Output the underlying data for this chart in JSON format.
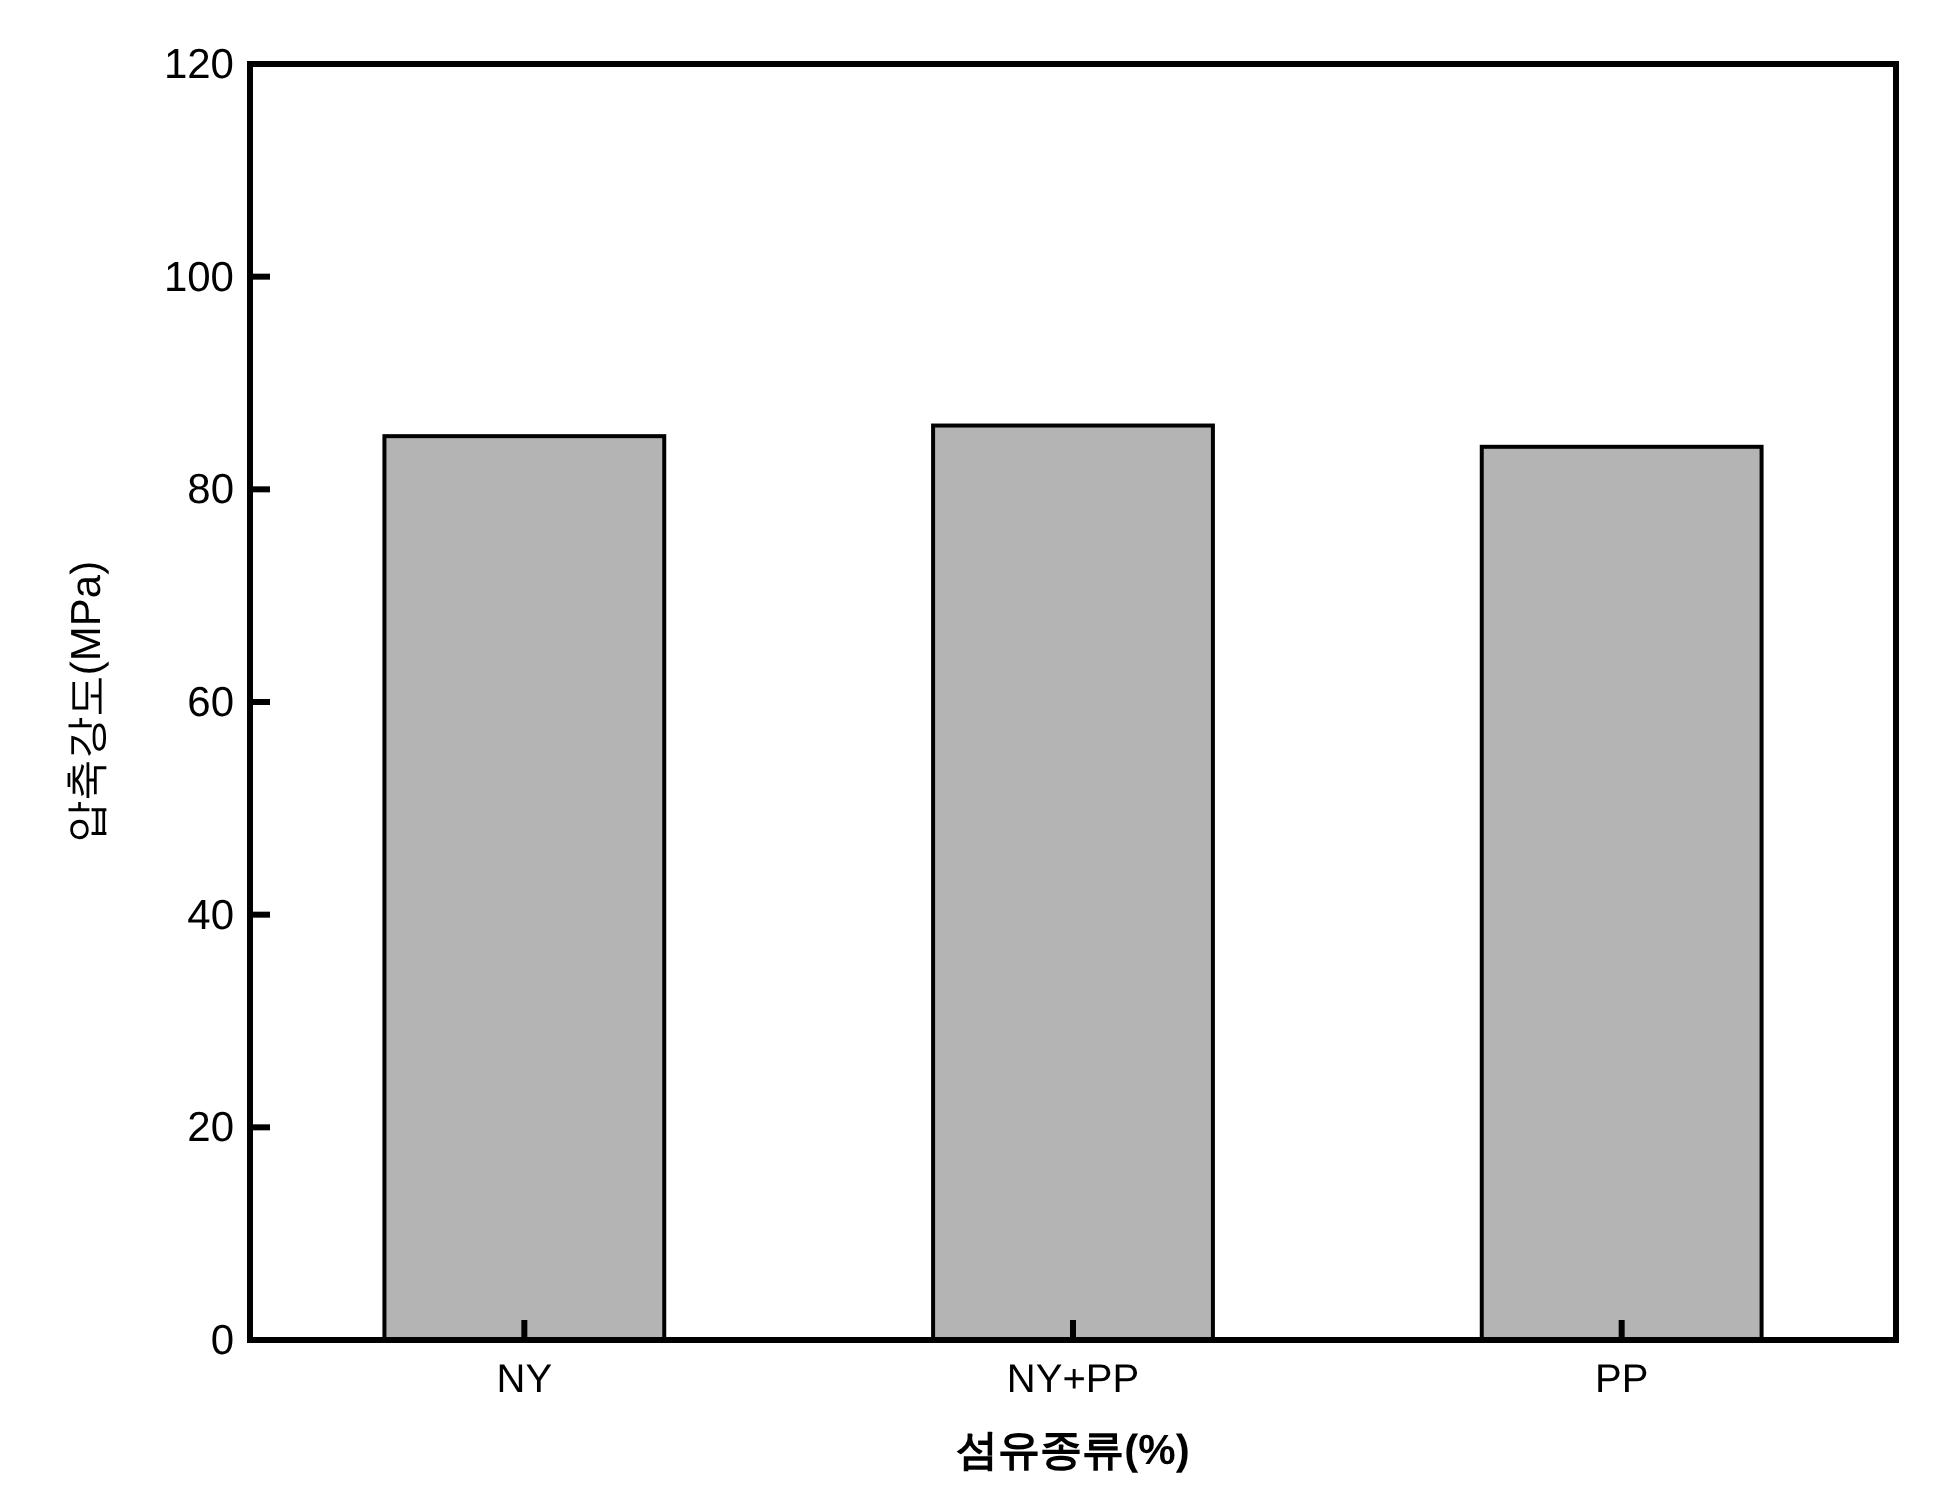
{
  "chart_data": {
    "type": "bar",
    "xlabel": "섬유종류(%)",
    "ylabel": "압축강도(MPa)",
    "categories": [
      "NY",
      "NY+PP",
      "PP"
    ],
    "values": [
      85,
      86,
      84
    ],
    "color": "#b4b4b4",
    "ylim": [
      0,
      120
    ],
    "yticks": [
      0,
      20,
      40,
      60,
      80,
      100,
      120
    ],
    "grid": false
  }
}
